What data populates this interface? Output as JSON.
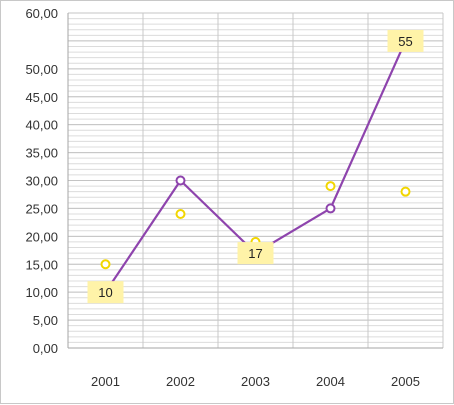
{
  "chart_data": {
    "type": "line",
    "categories": [
      "2001",
      "2002",
      "2003",
      "2004",
      "2005"
    ],
    "series": [
      {
        "values": [
          10,
          30,
          17,
          25,
          55
        ],
        "color": "#8e44ad",
        "marker": "hollow-circle",
        "data_labels": [
          "10",
          "",
          "17",
          "",
          "55"
        ]
      },
      {
        "values": [
          15,
          24,
          19,
          29,
          28
        ],
        "color": "#f2d600",
        "marker": "hollow-circle",
        "line": false
      }
    ],
    "ylim": [
      0,
      60
    ],
    "yticks": [
      "0,00",
      "5,00",
      "10,00",
      "15,00",
      "20,00",
      "25,00",
      "30,00",
      "35,00",
      "40,00",
      "45,00",
      "50,00",
      "60,00"
    ],
    "y_minor_step": 1,
    "x_gridlines": true,
    "label_box_color": "#fff3a8"
  }
}
